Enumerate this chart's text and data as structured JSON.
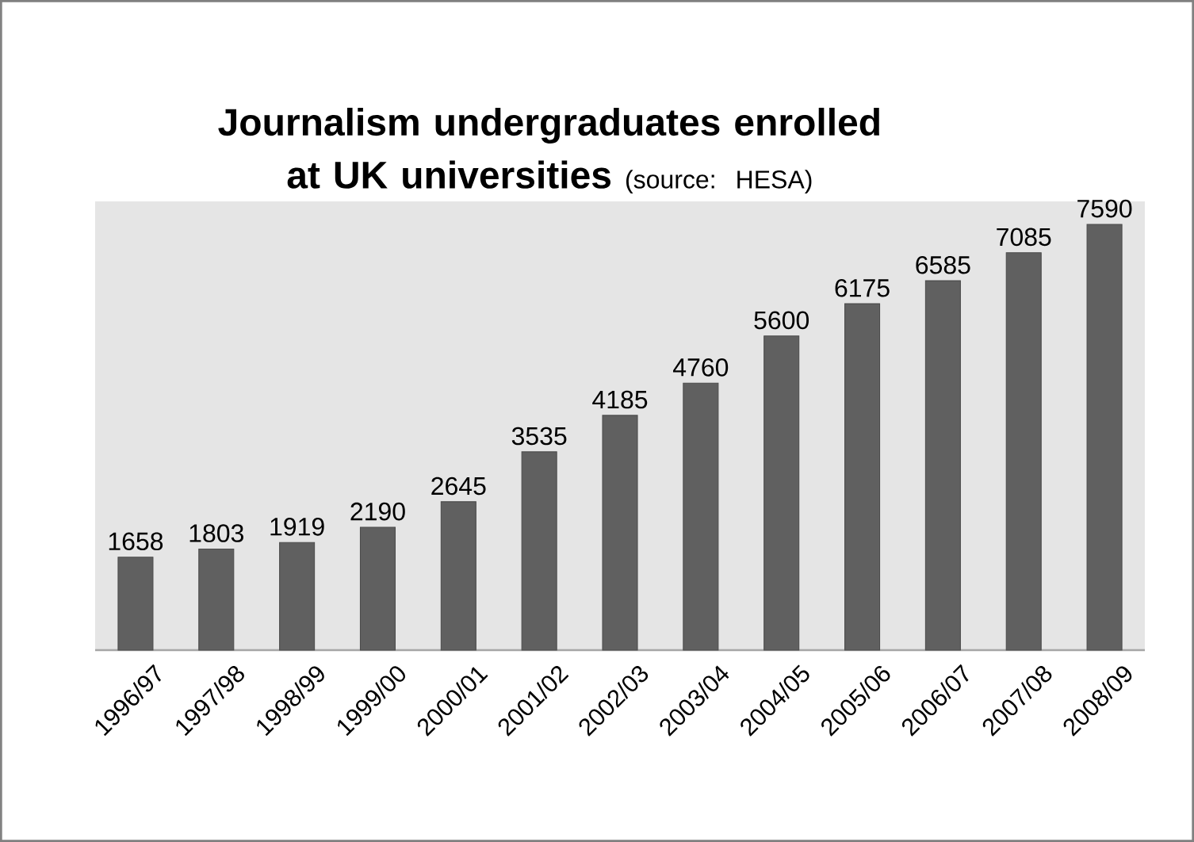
{
  "chart_data": {
    "type": "bar",
    "title": "Journalism undergraduates enrolled at UK universities",
    "subtitle": "(source: HESA)",
    "categories": [
      "1996/97",
      "1997/98",
      "1998/99",
      "1999/00",
      "2000/01",
      "2001/02",
      "2002/03",
      "2003/04",
      "2004/05",
      "2005/06",
      "2006/07",
      "2007/08",
      "2008/09"
    ],
    "values": [
      1658,
      1803,
      1919,
      2190,
      2645,
      3535,
      4185,
      4760,
      5600,
      6175,
      6585,
      7085,
      7590
    ],
    "value_labels": [
      "1658",
      "1803",
      "1919",
      "2190",
      "2645",
      "3535",
      "4185",
      "4760",
      "5600",
      "6175",
      "6585",
      "7085",
      "7590"
    ],
    "color": "#606060",
    "ylim": [
      0,
      8000
    ],
    "tick_labels": "x"
  }
}
